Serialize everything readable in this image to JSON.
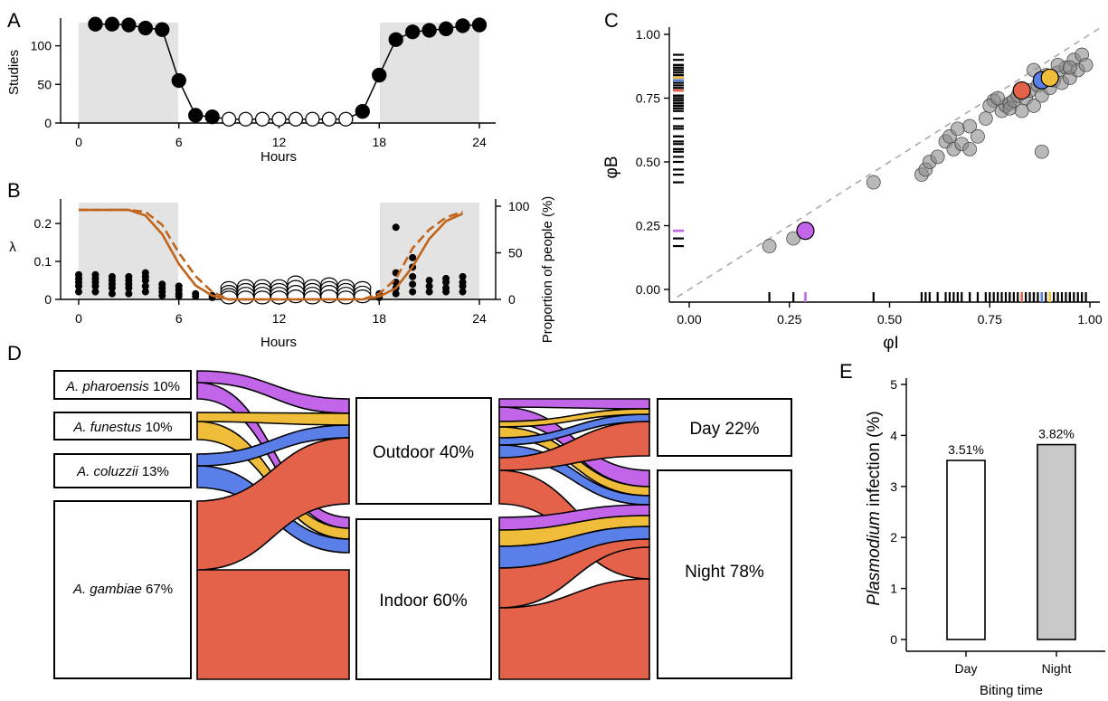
{
  "panels": {
    "a": "A",
    "b": "B",
    "c": "C",
    "d": "D",
    "e": "E"
  },
  "colors": {
    "shade": "#e3e3e3",
    "orange": "#c0651b",
    "gambiae": "#e4624a",
    "coluzzii": "#5b7fe8",
    "funestus": "#f0bd3a",
    "pharoensis": "#c365e9",
    "grey_point": "#8a8a8a",
    "bar_night": "#c8c8c8"
  },
  "chart_data": [
    {
      "panel": "A",
      "type": "line",
      "xlabel": "Hours",
      "ylabel": "Studies",
      "xlim": [
        -1,
        25
      ],
      "ylim": [
        0,
        135
      ],
      "xticks": [
        "0",
        "6",
        "12",
        "18",
        "24"
      ],
      "yticks": [
        "0",
        "50",
        "100"
      ],
      "shaded_ranges": [
        [
          0,
          6
        ],
        [
          18,
          24
        ]
      ],
      "x": [
        1,
        2,
        3,
        4,
        5,
        6,
        7,
        8,
        9,
        10,
        11,
        12,
        13,
        14,
        15,
        16,
        17,
        18,
        19,
        20,
        21,
        22,
        23,
        24
      ],
      "y": [
        128,
        128,
        127,
        123,
        121,
        55,
        10,
        8,
        5,
        5,
        5,
        5,
        5,
        5,
        5,
        5,
        15,
        62,
        108,
        118,
        120,
        122,
        126,
        127
      ],
      "filled": [
        1,
        1,
        1,
        1,
        1,
        1,
        1,
        1,
        0,
        0,
        0,
        0,
        0,
        0,
        0,
        0,
        1,
        1,
        1,
        1,
        1,
        1,
        1,
        1
      ]
    },
    {
      "panel": "B",
      "type": "scatter+line",
      "xlabel": "Hours",
      "ylabel": "λ",
      "y2label": "Proportion of people (%)",
      "xlim": [
        -1,
        25
      ],
      "ylim": [
        0,
        0.255
      ],
      "y2lim": [
        0,
        100
      ],
      "xticks": [
        "0",
        "6",
        "12",
        "18",
        "24"
      ],
      "yticks": [
        "0",
        "0.1",
        "0.2"
      ],
      "y2ticks": [
        "0",
        "50",
        "100"
      ],
      "shaded_ranges": [
        [
          0,
          6
        ],
        [
          18,
          24
        ]
      ],
      "points_day": [
        [
          0,
          0.065
        ],
        [
          0,
          0.055
        ],
        [
          0,
          0.045
        ],
        [
          0,
          0.035
        ],
        [
          0,
          0.02
        ],
        [
          1,
          0.065
        ],
        [
          1,
          0.055
        ],
        [
          1,
          0.045
        ],
        [
          1,
          0.035
        ],
        [
          1,
          0.02
        ],
        [
          2,
          0.06
        ],
        [
          2,
          0.05
        ],
        [
          2,
          0.04
        ],
        [
          2,
          0.03
        ],
        [
          2,
          0.015
        ],
        [
          3,
          0.06
        ],
        [
          3,
          0.05
        ],
        [
          3,
          0.04
        ],
        [
          3,
          0.03
        ],
        [
          3,
          0.015
        ],
        [
          4,
          0.07
        ],
        [
          4,
          0.06
        ],
        [
          4,
          0.05
        ],
        [
          4,
          0.035
        ],
        [
          4,
          0.02
        ],
        [
          5,
          0.04
        ],
        [
          5,
          0.03
        ],
        [
          5,
          0.02
        ],
        [
          5,
          0.01
        ],
        [
          6,
          0.035
        ],
        [
          6,
          0.025
        ],
        [
          6,
          0.015
        ],
        [
          6,
          0.008
        ],
        [
          7,
          0.015
        ],
        [
          7,
          0.008
        ],
        [
          8,
          0.01
        ],
        [
          8,
          0.005
        ],
        [
          18,
          0.015
        ],
        [
          18,
          0.005
        ],
        [
          19,
          0.19
        ],
        [
          19,
          0.07
        ],
        [
          19,
          0.045
        ],
        [
          19,
          0.03
        ],
        [
          19,
          0.015
        ],
        [
          20,
          0.11
        ],
        [
          20,
          0.085
        ],
        [
          20,
          0.06
        ],
        [
          20,
          0.04
        ],
        [
          20,
          0.02
        ],
        [
          21,
          0.05
        ],
        [
          21,
          0.035
        ],
        [
          21,
          0.02
        ],
        [
          22,
          0.055
        ],
        [
          22,
          0.045
        ],
        [
          22,
          0.03
        ],
        [
          22,
          0.02
        ],
        [
          23,
          0.06
        ],
        [
          23,
          0.045
        ],
        [
          23,
          0.035
        ],
        [
          23,
          0.02
        ]
      ],
      "points_night": [
        [
          9,
          0.03
        ],
        [
          9,
          0.02
        ],
        [
          9,
          0.012
        ],
        [
          9,
          0.005
        ],
        [
          10,
          0.035
        ],
        [
          10,
          0.025
        ],
        [
          10,
          0.015
        ],
        [
          10,
          0.005
        ],
        [
          11,
          0.035
        ],
        [
          11,
          0.025
        ],
        [
          11,
          0.015
        ],
        [
          11,
          0.005
        ],
        [
          12,
          0.035
        ],
        [
          12,
          0.025
        ],
        [
          12,
          0.015
        ],
        [
          12,
          0.005
        ],
        [
          13,
          0.045
        ],
        [
          13,
          0.033
        ],
        [
          13,
          0.02
        ],
        [
          13,
          0.008
        ],
        [
          14,
          0.035
        ],
        [
          14,
          0.025
        ],
        [
          14,
          0.015
        ],
        [
          14,
          0.005
        ],
        [
          15,
          0.04
        ],
        [
          15,
          0.03
        ],
        [
          15,
          0.02
        ],
        [
          15,
          0.008
        ],
        [
          16,
          0.035
        ],
        [
          16,
          0.025
        ],
        [
          16,
          0.015
        ],
        [
          16,
          0.005
        ],
        [
          17,
          0.03
        ],
        [
          17,
          0.018
        ],
        [
          17,
          0.008
        ]
      ],
      "line_solid": {
        "x": [
          0,
          2,
          3,
          4,
          5,
          6,
          7,
          8,
          9,
          17,
          18,
          19,
          20,
          21,
          22,
          23
        ],
        "y": [
          96,
          96,
          96,
          90,
          70,
          38,
          15,
          4,
          0,
          0,
          3,
          12,
          35,
          65,
          84,
          92
        ]
      },
      "line_dashed": {
        "x": [
          0,
          2,
          3,
          4,
          5,
          6,
          7,
          8,
          9,
          17,
          18,
          19,
          20,
          21,
          22,
          23
        ],
        "y": [
          96,
          96,
          96,
          94,
          80,
          50,
          25,
          8,
          0,
          0,
          6,
          22,
          55,
          75,
          88,
          94
        ]
      }
    },
    {
      "panel": "C",
      "type": "scatter",
      "xlabel": "φI",
      "ylabel": "φB",
      "xlim": [
        -0.04,
        1.03
      ],
      "ylim": [
        -0.04,
        1.03
      ],
      "xticks": [
        "0.00",
        "0.25",
        "0.50",
        "0.75",
        "1.00"
      ],
      "yticks": [
        "0.00",
        "0.25",
        "0.50",
        "0.75",
        "1.00"
      ],
      "reference_line": "y = x",
      "points": [
        [
          0.2,
          0.17
        ],
        [
          0.26,
          0.2
        ],
        [
          0.46,
          0.42
        ],
        [
          0.58,
          0.45
        ],
        [
          0.59,
          0.47
        ],
        [
          0.6,
          0.5
        ],
        [
          0.62,
          0.52
        ],
        [
          0.64,
          0.58
        ],
        [
          0.65,
          0.6
        ],
        [
          0.66,
          0.55
        ],
        [
          0.67,
          0.63
        ],
        [
          0.68,
          0.57
        ],
        [
          0.7,
          0.55
        ],
        [
          0.7,
          0.64
        ],
        [
          0.72,
          0.6
        ],
        [
          0.74,
          0.67
        ],
        [
          0.76,
          0.74
        ],
        [
          0.78,
          0.7
        ],
        [
          0.79,
          0.72
        ],
        [
          0.8,
          0.73
        ],
        [
          0.8,
          0.71
        ],
        [
          0.81,
          0.74
        ],
        [
          0.82,
          0.76
        ],
        [
          0.83,
          0.7
        ],
        [
          0.84,
          0.75
        ],
        [
          0.85,
          0.78
        ],
        [
          0.86,
          0.72
        ],
        [
          0.87,
          0.8
        ],
        [
          0.88,
          0.76
        ],
        [
          0.89,
          0.84
        ],
        [
          0.9,
          0.79
        ],
        [
          0.91,
          0.82
        ],
        [
          0.92,
          0.85
        ],
        [
          0.93,
          0.81
        ],
        [
          0.94,
          0.87
        ],
        [
          0.95,
          0.83
        ],
        [
          0.96,
          0.9
        ],
        [
          0.97,
          0.86
        ],
        [
          0.98,
          0.92
        ],
        [
          0.99,
          0.88
        ],
        [
          0.75,
          0.72
        ],
        [
          0.77,
          0.75
        ],
        [
          0.86,
          0.86
        ],
        [
          0.88,
          0.54
        ],
        [
          0.92,
          0.88
        ],
        [
          0.95,
          0.87
        ]
      ],
      "highlight": [
        {
          "species": "pharoensis",
          "x": 0.29,
          "y": 0.23
        },
        {
          "species": "gambiae",
          "x": 0.83,
          "y": 0.78
        },
        {
          "species": "coluzzii",
          "x": 0.88,
          "y": 0.82
        },
        {
          "species": "funestus",
          "x": 0.9,
          "y": 0.83
        }
      ]
    },
    {
      "panel": "D",
      "type": "sankey",
      "species": [
        {
          "key": "pharoensis",
          "label": "A. pharoensis",
          "pct": "10%"
        },
        {
          "key": "funestus",
          "label": "A. funestus",
          "pct": "10%"
        },
        {
          "key": "coluzzii",
          "label": "A. coluzzii",
          "pct": "13%"
        },
        {
          "key": "gambiae",
          "label": "A. gambiae",
          "pct": "67%"
        }
      ],
      "location": [
        {
          "label": "Outdoor",
          "pct": "40%"
        },
        {
          "label": "Indoor",
          "pct": "60%"
        }
      ],
      "time": [
        {
          "label": "Day",
          "pct": "22%"
        },
        {
          "label": "Night",
          "pct": "78%"
        }
      ]
    },
    {
      "panel": "E",
      "type": "bar",
      "xlabel": "Biting time",
      "ylabel_italic": "Plasmodium",
      "ylabel_rest": " infection (%)",
      "categories": [
        "Day",
        "Night"
      ],
      "values": [
        3.51,
        3.82
      ],
      "value_labels": [
        "3.51%",
        "3.82%"
      ],
      "ylim": [
        0,
        5.2
      ],
      "yticks": [
        "0",
        "1",
        "2",
        "3",
        "4",
        "5"
      ]
    }
  ]
}
